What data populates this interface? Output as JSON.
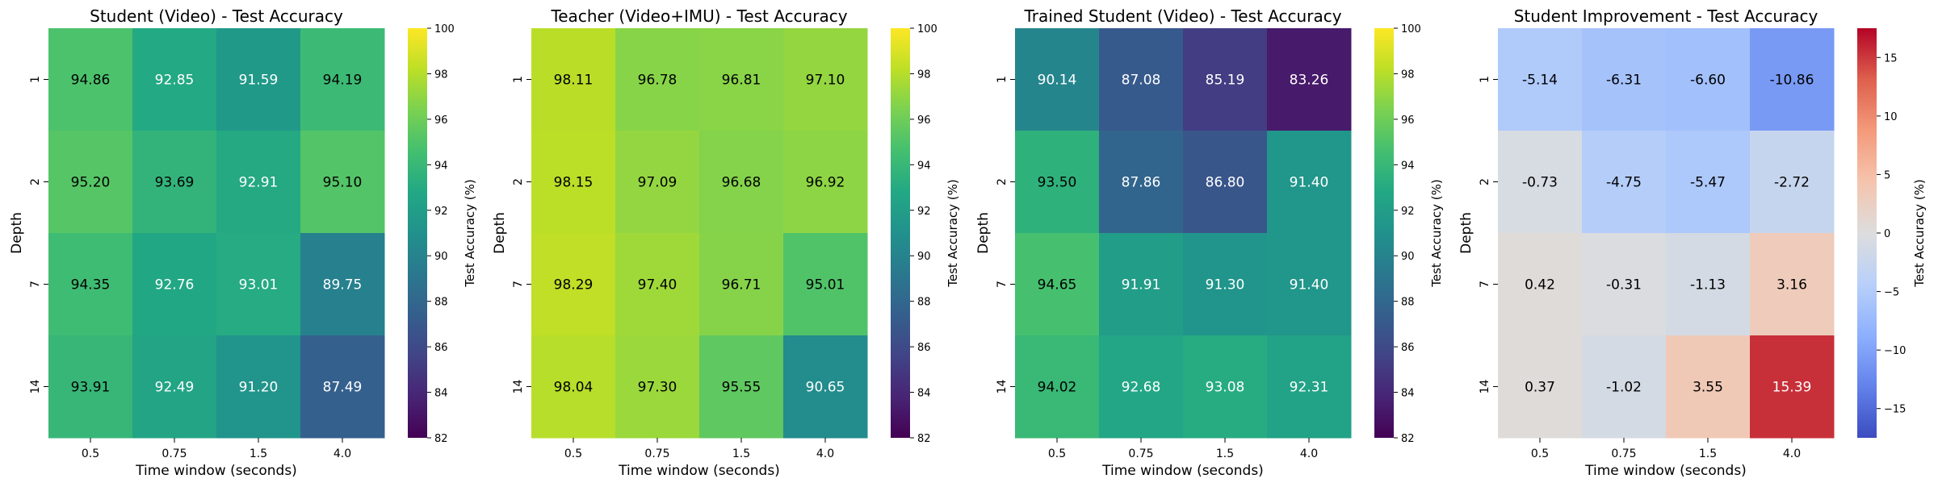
{
  "chart_data": [
    {
      "type": "heatmap",
      "title": "Student (Video) - Test Accuracy",
      "xlabel": "Time window (seconds)",
      "ylabel": "Depth",
      "x_categories": [
        "0.5",
        "0.75",
        "1.5",
        "4.0"
      ],
      "y_categories": [
        "1",
        "2",
        "7",
        "14"
      ],
      "values": [
        [
          94.86,
          92.85,
          91.59,
          94.19
        ],
        [
          95.2,
          93.69,
          92.91,
          95.1
        ],
        [
          94.35,
          92.76,
          93.01,
          89.75
        ],
        [
          93.91,
          92.49,
          91.2,
          87.49
        ]
      ],
      "cell_labels": [
        [
          "94.86",
          "92.85",
          "91.59",
          "94.19"
        ],
        [
          "95.20",
          "93.69",
          "92.91",
          "95.10"
        ],
        [
          "94.35",
          "92.76",
          "93.01",
          "89.75"
        ],
        [
          "93.91",
          "92.49",
          "91.20",
          "87.49"
        ]
      ],
      "colormap": "viridis",
      "colorbar": {
        "label": "Test Accuracy (%)",
        "vmin": 82,
        "vmax": 100,
        "ticks": [
          82,
          84,
          86,
          88,
          90,
          92,
          94,
          96,
          98,
          100
        ],
        "tick_labels": [
          "82",
          "84",
          "86",
          "88",
          "90",
          "92",
          "94",
          "96",
          "98",
          "100"
        ]
      }
    },
    {
      "type": "heatmap",
      "title": "Teacher (Video+IMU) - Test Accuracy",
      "xlabel": "Time window (seconds)",
      "ylabel": "Depth",
      "x_categories": [
        "0.5",
        "0.75",
        "1.5",
        "4.0"
      ],
      "y_categories": [
        "1",
        "2",
        "7",
        "14"
      ],
      "values": [
        [
          98.11,
          96.78,
          96.81,
          97.1
        ],
        [
          98.15,
          97.09,
          96.68,
          96.92
        ],
        [
          98.29,
          97.4,
          96.71,
          95.01
        ],
        [
          98.04,
          97.3,
          95.55,
          90.65
        ]
      ],
      "cell_labels": [
        [
          "98.11",
          "96.78",
          "96.81",
          "97.10"
        ],
        [
          "98.15",
          "97.09",
          "96.68",
          "96.92"
        ],
        [
          "98.29",
          "97.40",
          "96.71",
          "95.01"
        ],
        [
          "98.04",
          "97.30",
          "95.55",
          "90.65"
        ]
      ],
      "colormap": "viridis",
      "colorbar": {
        "label": "Test Accuracy (%)",
        "vmin": 82,
        "vmax": 100,
        "ticks": [
          82,
          84,
          86,
          88,
          90,
          92,
          94,
          96,
          98,
          100
        ],
        "tick_labels": [
          "82",
          "84",
          "86",
          "88",
          "90",
          "92",
          "94",
          "96",
          "98",
          "100"
        ]
      }
    },
    {
      "type": "heatmap",
      "title": "Trained Student (Video) - Test Accuracy",
      "xlabel": "Time window (seconds)",
      "ylabel": "Depth",
      "x_categories": [
        "0.5",
        "0.75",
        "1.5",
        "4.0"
      ],
      "y_categories": [
        "1",
        "2",
        "7",
        "14"
      ],
      "values": [
        [
          90.14,
          87.08,
          85.19,
          83.26
        ],
        [
          93.5,
          87.86,
          86.8,
          91.4
        ],
        [
          94.65,
          91.91,
          91.3,
          91.4
        ],
        [
          94.02,
          92.68,
          93.08,
          92.31
        ]
      ],
      "cell_labels": [
        [
          "90.14",
          "87.08",
          "85.19",
          "83.26"
        ],
        [
          "93.50",
          "87.86",
          "86.80",
          "91.40"
        ],
        [
          "94.65",
          "91.91",
          "91.30",
          "91.40"
        ],
        [
          "94.02",
          "92.68",
          "93.08",
          "92.31"
        ]
      ],
      "colormap": "viridis",
      "colorbar": {
        "label": "Test Accuracy (%)",
        "vmin": 82,
        "vmax": 100,
        "ticks": [
          82,
          84,
          86,
          88,
          90,
          92,
          94,
          96,
          98,
          100
        ],
        "tick_labels": [
          "82",
          "84",
          "86",
          "88",
          "90",
          "92",
          "94",
          "96",
          "98",
          "100"
        ]
      }
    },
    {
      "type": "heatmap",
      "title": "Student Improvement - Test Accuracy",
      "xlabel": "Time window (seconds)",
      "ylabel": "Depth",
      "x_categories": [
        "0.5",
        "0.75",
        "1.5",
        "4.0"
      ],
      "y_categories": [
        "1",
        "2",
        "7",
        "14"
      ],
      "values": [
        [
          -5.14,
          -6.31,
          -6.6,
          -10.86
        ],
        [
          -0.73,
          -4.75,
          -5.47,
          -2.72
        ],
        [
          0.42,
          -0.31,
          -1.13,
          3.16
        ],
        [
          0.37,
          -1.02,
          3.55,
          15.39
        ]
      ],
      "cell_labels": [
        [
          "-5.14",
          "-6.31",
          "-6.60",
          "-10.86"
        ],
        [
          "-0.73",
          "-4.75",
          "-5.47",
          "-2.72"
        ],
        [
          "0.42",
          "-0.31",
          "-1.13",
          "3.16"
        ],
        [
          "0.37",
          "-1.02",
          "3.55",
          "15.39"
        ]
      ],
      "colormap": "coolwarm",
      "colorbar": {
        "label": "Test Accuracy (%)",
        "vmin": -17.5,
        "vmax": 17.5,
        "ticks": [
          -15,
          -10,
          -5,
          0,
          5,
          10,
          15
        ],
        "tick_labels": [
          "−15",
          "−10",
          "−5",
          "0",
          "5",
          "10",
          "15"
        ]
      }
    }
  ]
}
